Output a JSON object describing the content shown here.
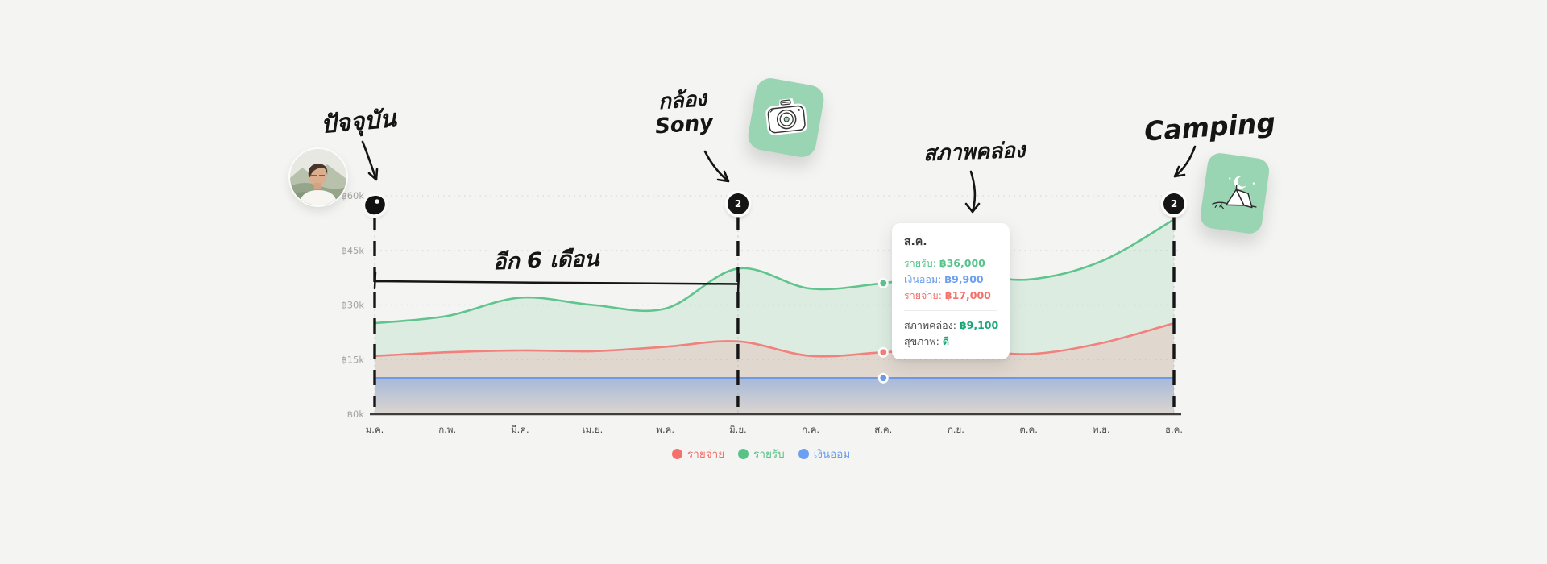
{
  "chart_data": {
    "type": "area",
    "title": "",
    "categories": [
      "ม.ค.",
      "ก.พ.",
      "มี.ค.",
      "เม.ย.",
      "พ.ค.",
      "มิ.ย.",
      "ก.ค.",
      "ส.ค.",
      "ก.ย.",
      "ต.ค.",
      "พ.ย.",
      "ธ.ค."
    ],
    "series": [
      {
        "name": "รายจ่าย",
        "color": "#f2807d",
        "fill": "rgba(243,128,125,0.18)",
        "values": [
          16000,
          17000,
          17500,
          17300,
          18500,
          20000,
          16000,
          17000,
          18000,
          16500,
          19500,
          25000
        ]
      },
      {
        "name": "รายรับ",
        "color": "#5fc48d",
        "fill": "rgba(98,196,142,0.17)",
        "values": [
          25000,
          27000,
          32000,
          30000,
          29000,
          40000,
          34500,
          36000,
          38500,
          37000,
          42000,
          53500
        ]
      },
      {
        "name": "เงินออม",
        "color": "#6e9ae3",
        "fill": "blue-gradient",
        "values": [
          9900,
          9900,
          9900,
          9900,
          9900,
          9900,
          9900,
          9900,
          9900,
          9900,
          9900,
          9900
        ]
      }
    ],
    "draw_order": [
      1,
      0,
      2
    ],
    "y_ticks": [
      {
        "value": 0,
        "label": "฿0k"
      },
      {
        "value": 15000,
        "label": "฿15k"
      },
      {
        "value": 30000,
        "label": "฿30k"
      },
      {
        "value": 45000,
        "label": "฿45k"
      },
      {
        "value": 60000,
        "label": "฿60k"
      }
    ],
    "ylim": [
      0,
      60000
    ],
    "grid": "horizontal-dashed",
    "legend_position": "bottom",
    "highlight_index": 7,
    "annotation_months": [
      0,
      5,
      11
    ]
  },
  "legend": [
    {
      "label": "รายจ่าย",
      "color": "#f4706b"
    },
    {
      "label": "รายรับ",
      "color": "#57c389"
    },
    {
      "label": "เงินออม",
      "color": "#6c9ef2"
    }
  ],
  "tooltip": {
    "title": "ส.ค.",
    "rows": [
      {
        "label": "รายรับ:",
        "value": "฿36,000",
        "color": "#57c38b"
      },
      {
        "label": "เงินออม:",
        "value": "฿9,900",
        "color": "#6c9ef2"
      },
      {
        "label": "รายจ่าย:",
        "value": "฿17,000",
        "color": "#f4706b"
      }
    ],
    "summary_rows": [
      {
        "label": "สภาพคล่อง:",
        "value": "฿9,100",
        "color": "#18a878"
      },
      {
        "label": "สุขภาพ:",
        "value": "ดี",
        "color": "#18a878"
      }
    ]
  },
  "annotations": {
    "present_label": "ปัจจุบัน",
    "camera_label_line1": "กล้อง",
    "camera_label_line2": "Sony",
    "liquidity_label": "สภาพคล่อง",
    "camping_label": "Camping",
    "bracket_label": "อีก 6 เดือน"
  },
  "markers": [
    {
      "type": "scribble",
      "month": "ม.ค.",
      "label": ""
    },
    {
      "type": "badge",
      "month": "มิ.ย.",
      "label": "2"
    },
    {
      "type": "badge",
      "month": "ธ.ค.",
      "label": "2"
    }
  ],
  "colors": {
    "background": "#f4f4f2",
    "axis_line": "#3d3d3d",
    "grid_line": "#dddddb",
    "y_tick_text": "#a3a3a1",
    "x_tick_text": "#4a4a4a",
    "ink": "#151515",
    "sticker_green": "#99d4b3",
    "tooltip_bg": "#ffffff"
  }
}
